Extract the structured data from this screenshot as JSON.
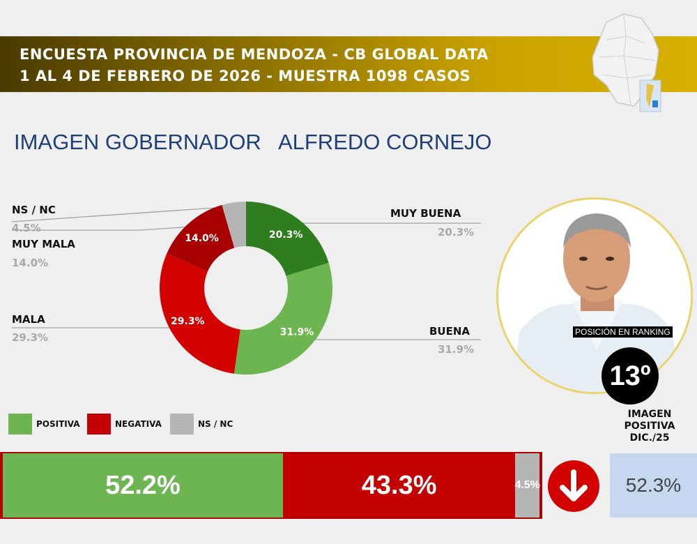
{
  "header": {
    "line1": "ENCUESTA PROVINCIA DE MENDOZA - CB GLOBAL DATA",
    "line2": "1 AL 4 DE FEBRERO DE 2026 - MUESTRA 1098 CASOS"
  },
  "title": "IMAGEN GOBERNADOR   ALFREDO CORNEJO",
  "colors": {
    "muy_buena": "#2e7d1e",
    "buena": "#6db551",
    "mala": "#d40000",
    "muy_mala": "#a80000",
    "ns_nc": "#b5b5b5",
    "positiva": "#6db551",
    "negativa": "#c40000",
    "banner": "#c9a200",
    "title": "#1f3f7a"
  },
  "chart_data": [
    {
      "type": "pie",
      "variant": "donut",
      "categories": [
        "MUY BUENA",
        "BUENA",
        "MALA",
        "MUY MALA",
        "NS / NC"
      ],
      "values": [
        20.3,
        31.9,
        29.3,
        14.0,
        4.5
      ],
      "slice_labels": [
        "20.3%",
        "31.9%",
        "29.3%",
        "14.0%",
        ""
      ],
      "side_labels": {
        "muy_buena": {
          "name": "MUY BUENA",
          "value": "20.3%"
        },
        "buena": {
          "name": "BUENA",
          "value": "31.9%"
        },
        "mala": {
          "name": "MALA",
          "value": "29.3%"
        },
        "muy_mala": {
          "name": "MUY MALA",
          "value": "14.0%"
        },
        "ns_nc": {
          "name": "NS / NC",
          "value": "4.5%"
        }
      }
    },
    {
      "type": "bar",
      "orientation": "horizontal-stacked",
      "categories": [
        "POSITIVA",
        "NEGATIVA",
        "NS / NC"
      ],
      "values": [
        52.2,
        43.3,
        4.5
      ],
      "labels": [
        "52.2%",
        "43.3%",
        "4.5%"
      ]
    }
  ],
  "legend": [
    {
      "label": "POSITIVA",
      "color": "#6db551"
    },
    {
      "label": "NEGATIVA",
      "color": "#c40000"
    },
    {
      "label": "NS / NC",
      "color": "#b5b5b5"
    }
  ],
  "ranking": {
    "label": "POSICIÓN EN RANKING",
    "value": "13º"
  },
  "previous": {
    "title": "IMAGEN POSITIVA DIC./25",
    "value": "52.3%"
  },
  "icons": {
    "trend": "arrow-down-icon",
    "map": "mendoza-map-icon",
    "portrait": "governor-photo"
  }
}
